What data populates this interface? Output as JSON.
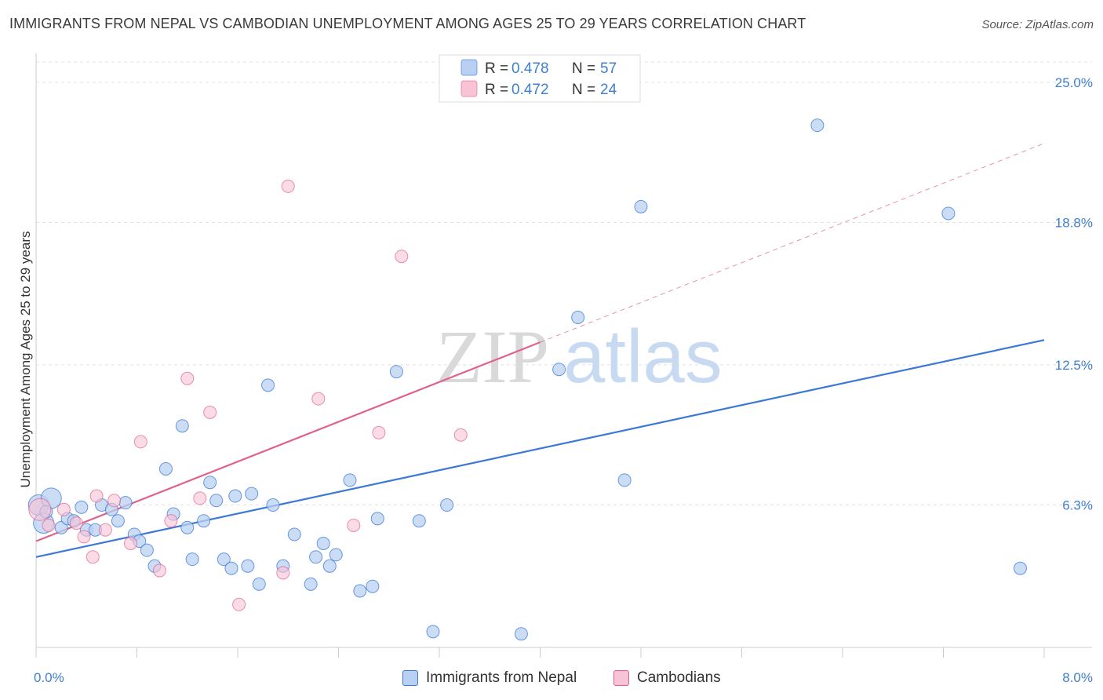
{
  "title": "IMMIGRANTS FROM NEPAL VS CAMBODIAN UNEMPLOYMENT AMONG AGES 25 TO 29 YEARS CORRELATION CHART",
  "source": "Source: ZipAtlas.com",
  "watermark": {
    "zip": "ZIP",
    "atlas": "atlas"
  },
  "colors": {
    "blue": "#3b78d8",
    "blue_fill": "#b9d0f2",
    "pink": "#e0628c",
    "pink_fill": "#f8c3d4",
    "tick": "#3f7fd0"
  },
  "legend": {
    "rows": [
      {
        "r_label": "R = ",
        "r_value": "0.478",
        "n_label": "N = ",
        "n_value": "57"
      },
      {
        "r_label": "R = ",
        "r_value": "0.472",
        "n_label": "N = ",
        "n_value": "24"
      }
    ]
  },
  "bottom_legend": {
    "series1": "Immigrants from Nepal",
    "series2": "Cambodians"
  },
  "chart_data": {
    "type": "scatter",
    "title": "IMMIGRANTS FROM NEPAL VS CAMBODIAN UNEMPLOYMENT AMONG AGES 25 TO 29 YEARS CORRELATION CHART",
    "xlabel": "",
    "ylabel": "Unemployment Among Ages 25 to 29 years",
    "xlim": [
      0,
      8
    ],
    "ylim": [
      0,
      25.9
    ],
    "x_tick_labels": [
      "0.0%",
      "8.0%"
    ],
    "y_ticks": [
      6.3,
      12.5,
      18.8,
      25.0
    ],
    "y_tick_labels": [
      "6.3%",
      "12.5%",
      "18.8%",
      "25.0%"
    ],
    "grid": true,
    "series": [
      {
        "name": "Immigrants from Nepal",
        "r": 0.478,
        "n": 57,
        "trend": {
          "x": [
            0,
            8
          ],
          "y": [
            4.0,
            13.6
          ],
          "style": "solid"
        },
        "points": [
          {
            "x": 0.02,
            "y": 6.3,
            "big": true
          },
          {
            "x": 0.06,
            "y": 5.5,
            "big": true
          },
          {
            "x": 0.12,
            "y": 6.6,
            "big": true
          },
          {
            "x": 0.2,
            "y": 5.3
          },
          {
            "x": 0.25,
            "y": 5.7
          },
          {
            "x": 0.3,
            "y": 5.6
          },
          {
            "x": 0.36,
            "y": 6.2
          },
          {
            "x": 0.4,
            "y": 5.2
          },
          {
            "x": 0.47,
            "y": 5.2
          },
          {
            "x": 0.52,
            "y": 6.3
          },
          {
            "x": 0.6,
            "y": 6.1
          },
          {
            "x": 0.65,
            "y": 5.6
          },
          {
            "x": 0.71,
            "y": 6.4
          },
          {
            "x": 0.78,
            "y": 5.0
          },
          {
            "x": 0.82,
            "y": 4.7
          },
          {
            "x": 0.88,
            "y": 4.3
          },
          {
            "x": 0.94,
            "y": 3.6
          },
          {
            "x": 1.03,
            "y": 7.9
          },
          {
            "x": 1.09,
            "y": 5.9
          },
          {
            "x": 1.16,
            "y": 9.8
          },
          {
            "x": 1.2,
            "y": 5.3
          },
          {
            "x": 1.24,
            "y": 3.9
          },
          {
            "x": 1.33,
            "y": 5.6
          },
          {
            "x": 1.38,
            "y": 7.3
          },
          {
            "x": 1.43,
            "y": 6.5
          },
          {
            "x": 1.49,
            "y": 3.9
          },
          {
            "x": 1.55,
            "y": 3.5
          },
          {
            "x": 1.58,
            "y": 6.7
          },
          {
            "x": 1.68,
            "y": 3.6
          },
          {
            "x": 1.71,
            "y": 6.8
          },
          {
            "x": 1.77,
            "y": 2.8
          },
          {
            "x": 1.84,
            "y": 11.6
          },
          {
            "x": 1.88,
            "y": 6.3
          },
          {
            "x": 1.96,
            "y": 3.6
          },
          {
            "x": 2.05,
            "y": 5.0
          },
          {
            "x": 2.18,
            "y": 2.8
          },
          {
            "x": 2.22,
            "y": 4.0
          },
          {
            "x": 2.28,
            "y": 4.6
          },
          {
            "x": 2.33,
            "y": 3.6
          },
          {
            "x": 2.38,
            "y": 4.1
          },
          {
            "x": 2.49,
            "y": 7.4
          },
          {
            "x": 2.57,
            "y": 2.5
          },
          {
            "x": 2.67,
            "y": 2.7
          },
          {
            "x": 2.71,
            "y": 5.7
          },
          {
            "x": 2.86,
            "y": 12.2
          },
          {
            "x": 3.04,
            "y": 5.6
          },
          {
            "x": 3.15,
            "y": 0.7
          },
          {
            "x": 3.26,
            "y": 6.3
          },
          {
            "x": 3.85,
            "y": 0.6
          },
          {
            "x": 4.15,
            "y": 12.3
          },
          {
            "x": 4.3,
            "y": 14.6
          },
          {
            "x": 4.67,
            "y": 7.4
          },
          {
            "x": 4.8,
            "y": 19.5
          },
          {
            "x": 6.2,
            "y": 23.1
          },
          {
            "x": 7.24,
            "y": 19.2
          },
          {
            "x": 7.81,
            "y": 3.5
          },
          {
            "x": 0.08,
            "y": 6.0
          }
        ]
      },
      {
        "name": "Cambodians",
        "r": 0.472,
        "n": 24,
        "trend": {
          "x": [
            0,
            4.0
          ],
          "y": [
            4.7,
            13.5
          ],
          "style": "solid"
        },
        "trend_extension": {
          "x": [
            4.0,
            8.0
          ],
          "y": [
            13.5,
            22.3
          ],
          "style": "dashed"
        },
        "points": [
          {
            "x": 0.03,
            "y": 6.1,
            "big": true
          },
          {
            "x": 0.1,
            "y": 5.4
          },
          {
            "x": 0.22,
            "y": 6.1
          },
          {
            "x": 0.32,
            "y": 5.5
          },
          {
            "x": 0.38,
            "y": 4.9
          },
          {
            "x": 0.45,
            "y": 4.0
          },
          {
            "x": 0.48,
            "y": 6.7
          },
          {
            "x": 0.55,
            "y": 5.2
          },
          {
            "x": 0.62,
            "y": 6.5
          },
          {
            "x": 0.75,
            "y": 4.6
          },
          {
            "x": 0.83,
            "y": 9.1
          },
          {
            "x": 0.98,
            "y": 3.4
          },
          {
            "x": 1.07,
            "y": 5.6
          },
          {
            "x": 1.2,
            "y": 11.9
          },
          {
            "x": 1.3,
            "y": 6.6
          },
          {
            "x": 1.38,
            "y": 10.4
          },
          {
            "x": 1.61,
            "y": 1.9
          },
          {
            "x": 1.96,
            "y": 3.3
          },
          {
            "x": 2.0,
            "y": 20.4
          },
          {
            "x": 2.24,
            "y": 11.0
          },
          {
            "x": 2.52,
            "y": 5.4
          },
          {
            "x": 2.72,
            "y": 9.5
          },
          {
            "x": 2.9,
            "y": 17.3
          },
          {
            "x": 3.37,
            "y": 9.4
          }
        ]
      }
    ]
  }
}
